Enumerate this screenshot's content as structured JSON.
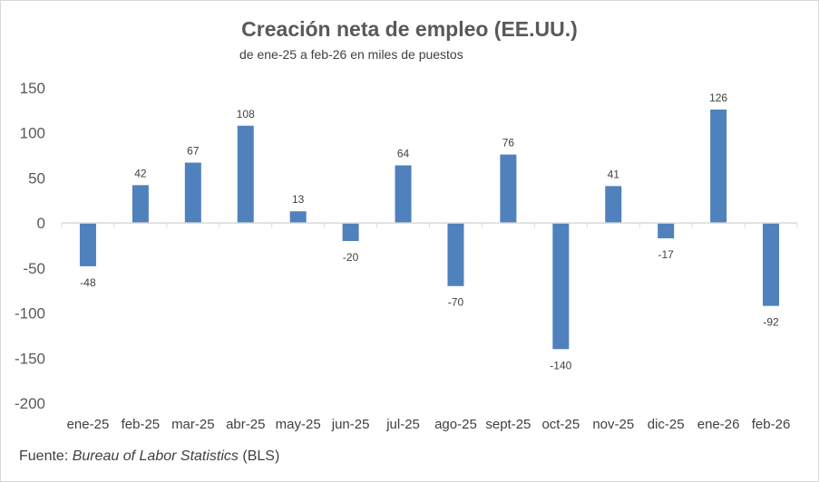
{
  "chart_data": {
    "type": "bar",
    "title": "Creación neta de empleo (EE.UU.)",
    "subtitle": "de ene-25 a feb-26 en miles de puestos",
    "categories": [
      "ene-25",
      "feb-25",
      "mar-25",
      "abr-25",
      "may-25",
      "jun-25",
      "jul-25",
      "ago-25",
      "sept-25",
      "oct-25",
      "nov-25",
      "dic-25",
      "ene-26",
      "feb-26"
    ],
    "series": [
      {
        "values": [
          -48,
          42,
          67,
          108,
          13,
          -20,
          64,
          -70,
          76,
          -140,
          41,
          -17,
          126,
          -92
        ]
      }
    ],
    "data_labels": [
      "-48",
      "42",
      "67",
      "108",
      "13",
      "-20",
      "64",
      "-70",
      "76",
      "-140",
      "41",
      "-17",
      "126",
      "-92"
    ],
    "ylim": [
      -200,
      150
    ],
    "yticks": [
      150,
      100,
      50,
      0,
      -50,
      -100,
      -150,
      -200
    ],
    "xlabel": "",
    "ylabel": "",
    "grid": false,
    "legend": "none",
    "bar_color": "#4f81bd",
    "axis_color": "#d9d9d9"
  },
  "source": {
    "prefix": "Fuente: ",
    "italic": "Bureau of Labor Statistics",
    "suffix": " (BLS)"
  }
}
